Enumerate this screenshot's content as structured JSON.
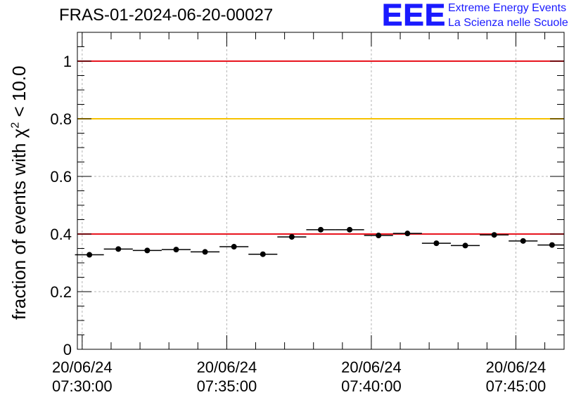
{
  "title": "FRAS-01-2024-06-20-00027",
  "logo": {
    "mark": "EEE",
    "line1": "Extreme Energy Events",
    "line2": "La Scienza nelle Scuole"
  },
  "ylabel": {
    "prefix": "fraction of events with ",
    "symbol": "χ",
    "sup": "2",
    "suffix": " < 10.0"
  },
  "colors": {
    "red_line": "#e8141e",
    "yellow_line": "#f7c200",
    "logo": "#1a1aff",
    "grid": "#b4b4b4"
  },
  "chart_data": {
    "type": "scatter",
    "title": "FRAS-01-2024-06-20-00027",
    "xlabel": "",
    "ylabel": "fraction of events with χ² < 10.0",
    "x_ticks": [
      {
        "date": "20/06/24",
        "time": "07:30:00"
      },
      {
        "date": "20/06/24",
        "time": "07:35:00"
      },
      {
        "date": "20/06/24",
        "time": "07:40:00"
      },
      {
        "date": "20/06/24",
        "time": "07:45:00"
      }
    ],
    "xlim": [
      "07:29:50",
      "07:46:40"
    ],
    "ylim": [
      0,
      1.1
    ],
    "y_ticks": [
      "0",
      "0.2",
      "0.4",
      "0.6",
      "0.8",
      "1"
    ],
    "y_tick_values": [
      0,
      0.2,
      0.4,
      0.6,
      0.8,
      1.0
    ],
    "grid": true,
    "reference_lines": [
      {
        "y": 1.0,
        "color": "red"
      },
      {
        "y": 0.8,
        "color": "yellow"
      },
      {
        "y": 0.4,
        "color": "red"
      }
    ],
    "series": [
      {
        "points": [
          {
            "x": "07:30:15",
            "y": 0.328
          },
          {
            "x": "07:31:15",
            "y": 0.348
          },
          {
            "x": "07:32:15",
            "y": 0.343
          },
          {
            "x": "07:33:15",
            "y": 0.346
          },
          {
            "x": "07:34:15",
            "y": 0.338
          },
          {
            "x": "07:35:15",
            "y": 0.356
          },
          {
            "x": "07:36:15",
            "y": 0.33
          },
          {
            "x": "07:37:15",
            "y": 0.39
          },
          {
            "x": "07:38:15",
            "y": 0.415
          },
          {
            "x": "07:39:15",
            "y": 0.415
          },
          {
            "x": "07:40:15",
            "y": 0.395
          },
          {
            "x": "07:41:15",
            "y": 0.402
          },
          {
            "x": "07:42:15",
            "y": 0.368
          },
          {
            "x": "07:43:15",
            "y": 0.36
          },
          {
            "x": "07:44:15",
            "y": 0.397
          },
          {
            "x": "07:45:15",
            "y": 0.376
          },
          {
            "x": "07:46:15",
            "y": 0.362
          }
        ],
        "bin_width_seconds": 60
      }
    ]
  }
}
